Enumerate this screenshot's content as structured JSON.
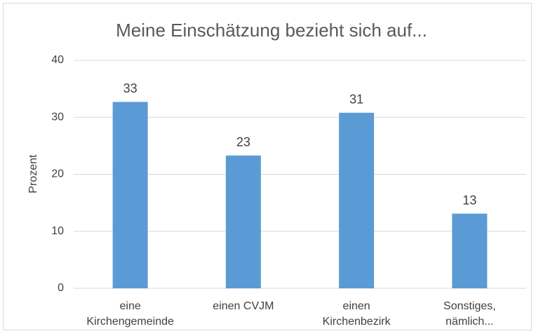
{
  "chart_data": {
    "type": "bar",
    "title": "Meine Einschätzung bezieht sich auf...",
    "ylabel": "Prozent",
    "categories": [
      [
        "eine",
        "Kirchengemeinde"
      ],
      [
        "einen CVJM"
      ],
      [
        "einen",
        "Kirchenbezirk"
      ],
      [
        "Sonstiges,",
        "nämlich..."
      ]
    ],
    "values": [
      32.7,
      23.3,
      30.8,
      13.1
    ],
    "value_labels": [
      "33",
      "23",
      "31",
      "13"
    ],
    "color": "#5b9bd5",
    "ylim": [
      0,
      40
    ],
    "yticks": [
      0,
      10,
      20,
      30,
      40
    ],
    "grid": true
  }
}
